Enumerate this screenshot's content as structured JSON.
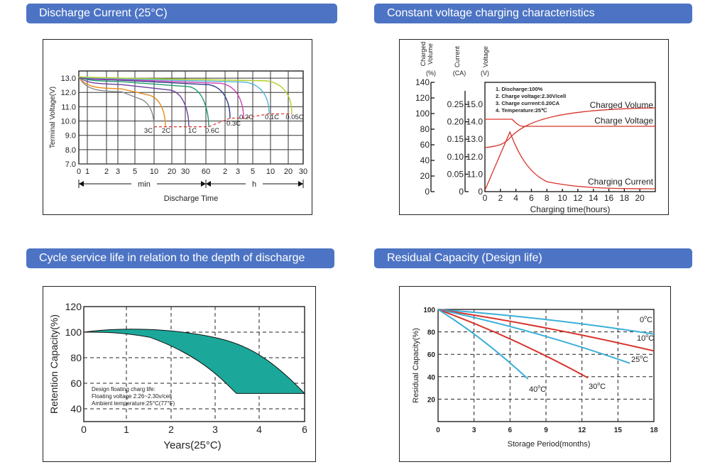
{
  "sections": {
    "discharge": "Discharge Current (25°C)",
    "charging": "Constant voltage charging characteristics",
    "cycle": "Cycle service life in relation to the depth of discharge",
    "residual": "Residual Capacity (Design life)"
  },
  "chart_data": [
    {
      "type": "line",
      "title": "Discharge Current (25°C)",
      "ylabel": "Terminal Voltage(V)",
      "xlabel": "Discharge Time",
      "x_groups": [
        "min",
        "h"
      ],
      "x_ticks": [
        "0",
        "1",
        "2",
        "3",
        "5",
        "10",
        "20",
        "30",
        "60",
        "2",
        "3",
        "5",
        "10",
        "20",
        "30"
      ],
      "y_ticks": [
        "7.0",
        "8.0",
        "9.0",
        "10.0",
        "11.0",
        "12.0",
        "13.0"
      ],
      "ylim": [
        7.0,
        13.5
      ],
      "curve_labels": [
        "3C",
        "2C",
        "1C",
        "0.6C",
        "0.3C",
        "0.2C",
        "0.1C",
        "0.05C"
      ],
      "series": [
        {
          "name": "3C",
          "color": "#8a8a8a",
          "end_voltage": 9.6
        },
        {
          "name": "2C",
          "color": "#e88a1a",
          "end_voltage": 9.6
        },
        {
          "name": "1C",
          "color": "#6a3fa0",
          "end_voltage": 9.6
        },
        {
          "name": "0.6C",
          "color": "#1f9a6a",
          "end_voltage": 9.6
        },
        {
          "name": "0.3C",
          "color": "#2a3d8f",
          "end_voltage": 10.2
        },
        {
          "name": "0.2C",
          "color": "#d13fb0",
          "end_voltage": 10.2
        },
        {
          "name": "0.1C",
          "color": "#4fb3d8",
          "end_voltage": 10.5
        },
        {
          "name": "0.05C",
          "color": "#b4cf2c",
          "end_voltage": 10.5
        }
      ]
    },
    {
      "type": "line",
      "title": "Constant voltage charging characteristics",
      "xlabel": "Charging time(hours)",
      "x_ticks": [
        "0",
        "2",
        "4",
        "6",
        "8",
        "10",
        "12",
        "14",
        "16",
        "18",
        "20"
      ],
      "xlim": [
        0,
        22
      ],
      "axis1": {
        "label_lines": [
          "Charged",
          "Volume"
        ],
        "unit": "(%)",
        "ticks": [
          "0",
          "20",
          "40",
          "60",
          "80",
          "100",
          "120",
          "140"
        ]
      },
      "axis2": {
        "label": "Current",
        "unit": "(CA)",
        "ticks": [
          "0",
          "0.05",
          "0.10",
          "0.15",
          "0.20",
          "0.25"
        ]
      },
      "axis3": {
        "label": "Voltage",
        "unit": "(V)",
        "ticks": [
          "0",
          "11.0",
          "12.0",
          "13.0",
          "14.0",
          "15.0"
        ]
      },
      "conditions": [
        "1. Discharge:100%",
        "2. Charge voltage:2.30V/cell",
        "3. Charge current:0.20CA",
        "4. Temperature:25℃"
      ],
      "series": [
        {
          "name": "Charged Volume",
          "color": "#d8332b"
        },
        {
          "name": "Charge Voltage",
          "color": "#d8332b"
        },
        {
          "name": "Charging Current",
          "color": "#d8332b"
        }
      ]
    },
    {
      "type": "area",
      "title": "Cycle service life in relation to the depth of discharge",
      "xlabel": "Years(25°C)",
      "ylabel": "Retention Capacity(%)",
      "x_ticks": [
        "0",
        "1",
        "2",
        "3",
        "4",
        "6"
      ],
      "y_ticks": [
        "40",
        "60",
        "80",
        "100",
        "120"
      ],
      "notes": [
        "Design floating charg life:",
        "Floating voltage 2.26~2.30v/cell",
        "Ambient temperature:25°C(77°F)"
      ],
      "fill_color": "#1ba89a"
    },
    {
      "type": "line",
      "title": "Residual Capacity (Design life)",
      "xlabel": "Storage Period(months)",
      "ylabel": "Residual Capacity(%)",
      "x_ticks": [
        "0",
        "3",
        "6",
        "9",
        "12",
        "15",
        "18"
      ],
      "y_ticks": [
        "20",
        "40",
        "60",
        "80",
        "100"
      ],
      "series": [
        {
          "name": "0°C",
          "label": "0",
          "color": "#3aaed8",
          "points": [
            [
              0,
              100
            ],
            [
              18,
              78
            ]
          ]
        },
        {
          "name": "10°C",
          "label": "10",
          "color": "#d8332b",
          "points": [
            [
              0,
              100
            ],
            [
              18,
              63
            ]
          ]
        },
        {
          "name": "25°C",
          "label": "25",
          "color": "#3aaed8",
          "points": [
            [
              0,
              100
            ],
            [
              16,
              52
            ]
          ]
        },
        {
          "name": "30°C",
          "label": "30",
          "color": "#d8332b",
          "points": [
            [
              0,
              100
            ],
            [
              12.5,
              39
            ]
          ]
        },
        {
          "name": "40°C",
          "label": "40",
          "color": "#3aaed8",
          "points": [
            [
              0,
              100
            ],
            [
              7.5,
              38
            ]
          ]
        }
      ]
    }
  ]
}
